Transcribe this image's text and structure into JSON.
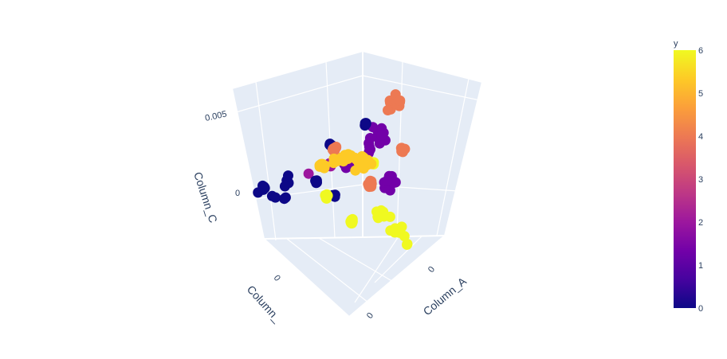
{
  "chart_data": {
    "type": "scatter3d",
    "axes": {
      "x": {
        "label": "Column_A",
        "ticks": [
          "0"
        ]
      },
      "y": {
        "label": "Column_",
        "ticks": [
          "0"
        ]
      },
      "z": {
        "label": "Column_C",
        "ticks": [
          "0",
          "0.005"
        ]
      }
    },
    "colorbar": {
      "title": "y",
      "min": 0,
      "max": 6,
      "ticks": [
        "0",
        "1",
        "2",
        "3",
        "4",
        "5",
        "6"
      ],
      "colorscale": [
        "#0d0887",
        "#46039f",
        "#7201a8",
        "#9c179e",
        "#bd3786",
        "#d8576b",
        "#ed7953",
        "#fb9f3a",
        "#fdca26",
        "#f0f921"
      ]
    },
    "clusters": [
      {
        "y": 0,
        "count": 30
      },
      {
        "y": 1,
        "count": 40
      },
      {
        "y": 2,
        "count": 3
      },
      {
        "y": 4,
        "count": 40
      },
      {
        "y": 5,
        "count": 45
      },
      {
        "y": 6,
        "count": 45
      }
    ]
  }
}
